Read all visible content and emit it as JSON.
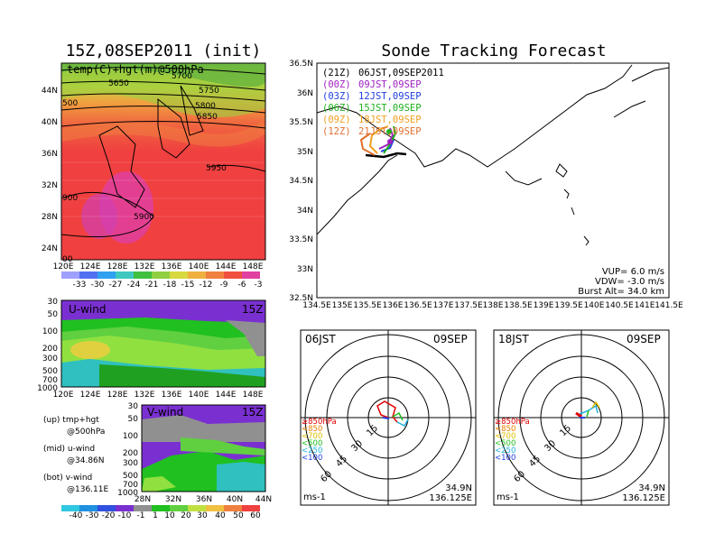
{
  "map_panel": {
    "title": "15Z,08SEP2011 (init)",
    "label": "temp(C)+hgt(m)@500hPa",
    "xticks": [
      "120E",
      "124E",
      "128E",
      "132E",
      "136E",
      "140E",
      "144E",
      "148E"
    ],
    "yticks": [
      "44N",
      "40N",
      "36N",
      "32N",
      "28N",
      "24N"
    ],
    "contours": [
      "5650",
      "5700",
      "5750",
      "5800",
      "5850",
      "5950",
      "5900",
      "900",
      "500",
      "00"
    ],
    "colorbar": [
      "-33",
      "-30",
      "-27",
      "-24",
      "-21",
      "-18",
      "-15",
      "-12",
      "-9",
      "-6",
      "-3"
    ]
  },
  "u_panel": {
    "title": "U-wind",
    "time": "15Z",
    "yticks": [
      "30",
      "50",
      "100",
      "200",
      "300",
      "500",
      "700",
      "1000"
    ],
    "xticks": [
      "120E",
      "124E",
      "128E",
      "132E",
      "136E",
      "140E",
      "144E",
      "148E"
    ]
  },
  "v_panel": {
    "title": "V-wind",
    "time": "15Z",
    "yticks": [
      "30",
      "50",
      "100",
      "200",
      "300",
      "500",
      "700",
      "1000"
    ],
    "xticks": [
      "28N",
      "32N",
      "36N",
      "40N",
      "44N"
    ]
  },
  "legend": {
    "up1": "(up) tmp+hgt",
    "up2": "@500hPa",
    "mid1": "(mid) u-wind",
    "mid2": "@34.86N",
    "bot1": "(bot) v-wind",
    "bot2": "@136.11E"
  },
  "wind_colorbar": [
    "-40",
    "-30",
    "-20",
    "-10",
    "-1",
    "1",
    "10",
    "20",
    "30",
    "40",
    "50",
    "60"
  ],
  "track_panel": {
    "title": "Sonde Tracking Forecast",
    "xticks": [
      "134.5E",
      "135E",
      "135.5E",
      "136E",
      "136.5E",
      "137E",
      "137.5E",
      "138E",
      "138.5E",
      "139E",
      "139.5E",
      "140E",
      "140.5E",
      "141E",
      "141.5E"
    ],
    "yticks": [
      "36.5N",
      "36N",
      "35.5N",
      "35N",
      "34.5N",
      "34N",
      "33.5N",
      "33N",
      "32.5N"
    ],
    "runs": [
      {
        "utc": "(21Z)",
        "jst": "06JST,09SEP2011",
        "color": "#000000"
      },
      {
        "utc": "(00Z)",
        "jst": "09JST,09SEP",
        "color": "#a020c0"
      },
      {
        "utc": "(03Z)",
        "jst": "12JST,09SEP",
        "color": "#2040e0"
      },
      {
        "utc": "(06Z)",
        "jst": "15JST,09SEP",
        "color": "#20b020"
      },
      {
        "utc": "(09Z)",
        "jst": "18JST,09SEP",
        "color": "#f0a020"
      },
      {
        "utc": "(12Z)",
        "jst": "21JST,09SEP",
        "color": "#e07030"
      }
    ],
    "vup": "VUP= 6.0 m/s",
    "vdw": "VDW= -3.0 m/s",
    "burst": "Burst Alt= 34.0 km"
  },
  "hodo_left": {
    "time": "06JST",
    "date": "09SEP",
    "rings": [
      "15",
      "30",
      "45",
      "60"
    ],
    "levels": [
      "≥850hPa",
      "<850",
      "<700",
      "<500",
      "<250",
      "<100"
    ],
    "units": "ms-1",
    "lat": "34.9N",
    "lon": "136.125E"
  },
  "hodo_right": {
    "time": "18JST",
    "date": "09SEP",
    "rings": [
      "15",
      "30",
      "45",
      "60"
    ],
    "levels": [
      "≥850hPa",
      "<850",
      "<700",
      "<500",
      "<250",
      "<100"
    ],
    "units": "ms-1",
    "lat": "34.9N",
    "lon": "136.125E"
  },
  "colors": {
    "level_colors": [
      "#e00000",
      "#f08000",
      "#e0c000",
      "#20c020",
      "#20b0e0",
      "#2040e0"
    ]
  }
}
